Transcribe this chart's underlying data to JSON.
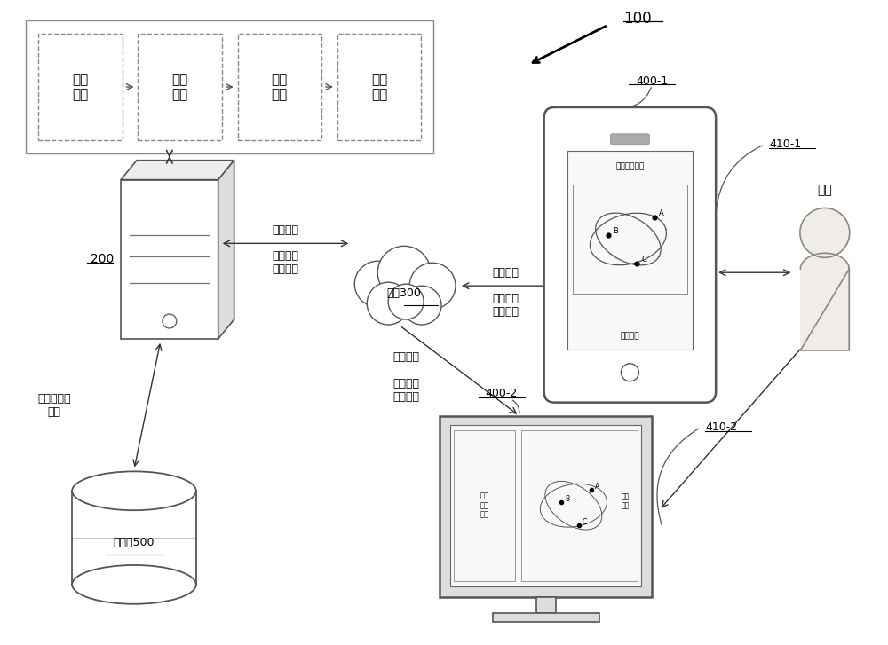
{
  "bg_color": "#ffffff",
  "label_100": "100",
  "label_200": "200",
  "label_300": "网络300",
  "label_400_1": "400-1",
  "label_410_1": "410-1",
  "label_400_2": "400-2",
  "label_410_2": "410-2",
  "label_500": "数据库500",
  "label_user": "用户",
  "box_labels": [
    "特征\n向量",
    "渲染\n层级",
    "渲染\n评分",
    "渲染\n权重"
  ],
  "label_srv_cloud_top": "触发指令",
  "label_srv_cloud_bot": "渲染后的\n电子地图",
  "label_cloud_phone_top": "触发指令",
  "label_cloud_phone_bot": "渲染后的\n电子地图",
  "label_cloud_mon_top": "触发指令",
  "label_cloud_mon_bot": "渲染后的\n电子地图",
  "label_geo": "地理元素的\n信息",
  "phone_screen_title": "电子地图界面",
  "phone_screen_map": "电子地图",
  "monitor_left_text": "电子\n地图\n界面",
  "monitor_right_text": "电子\n地图"
}
